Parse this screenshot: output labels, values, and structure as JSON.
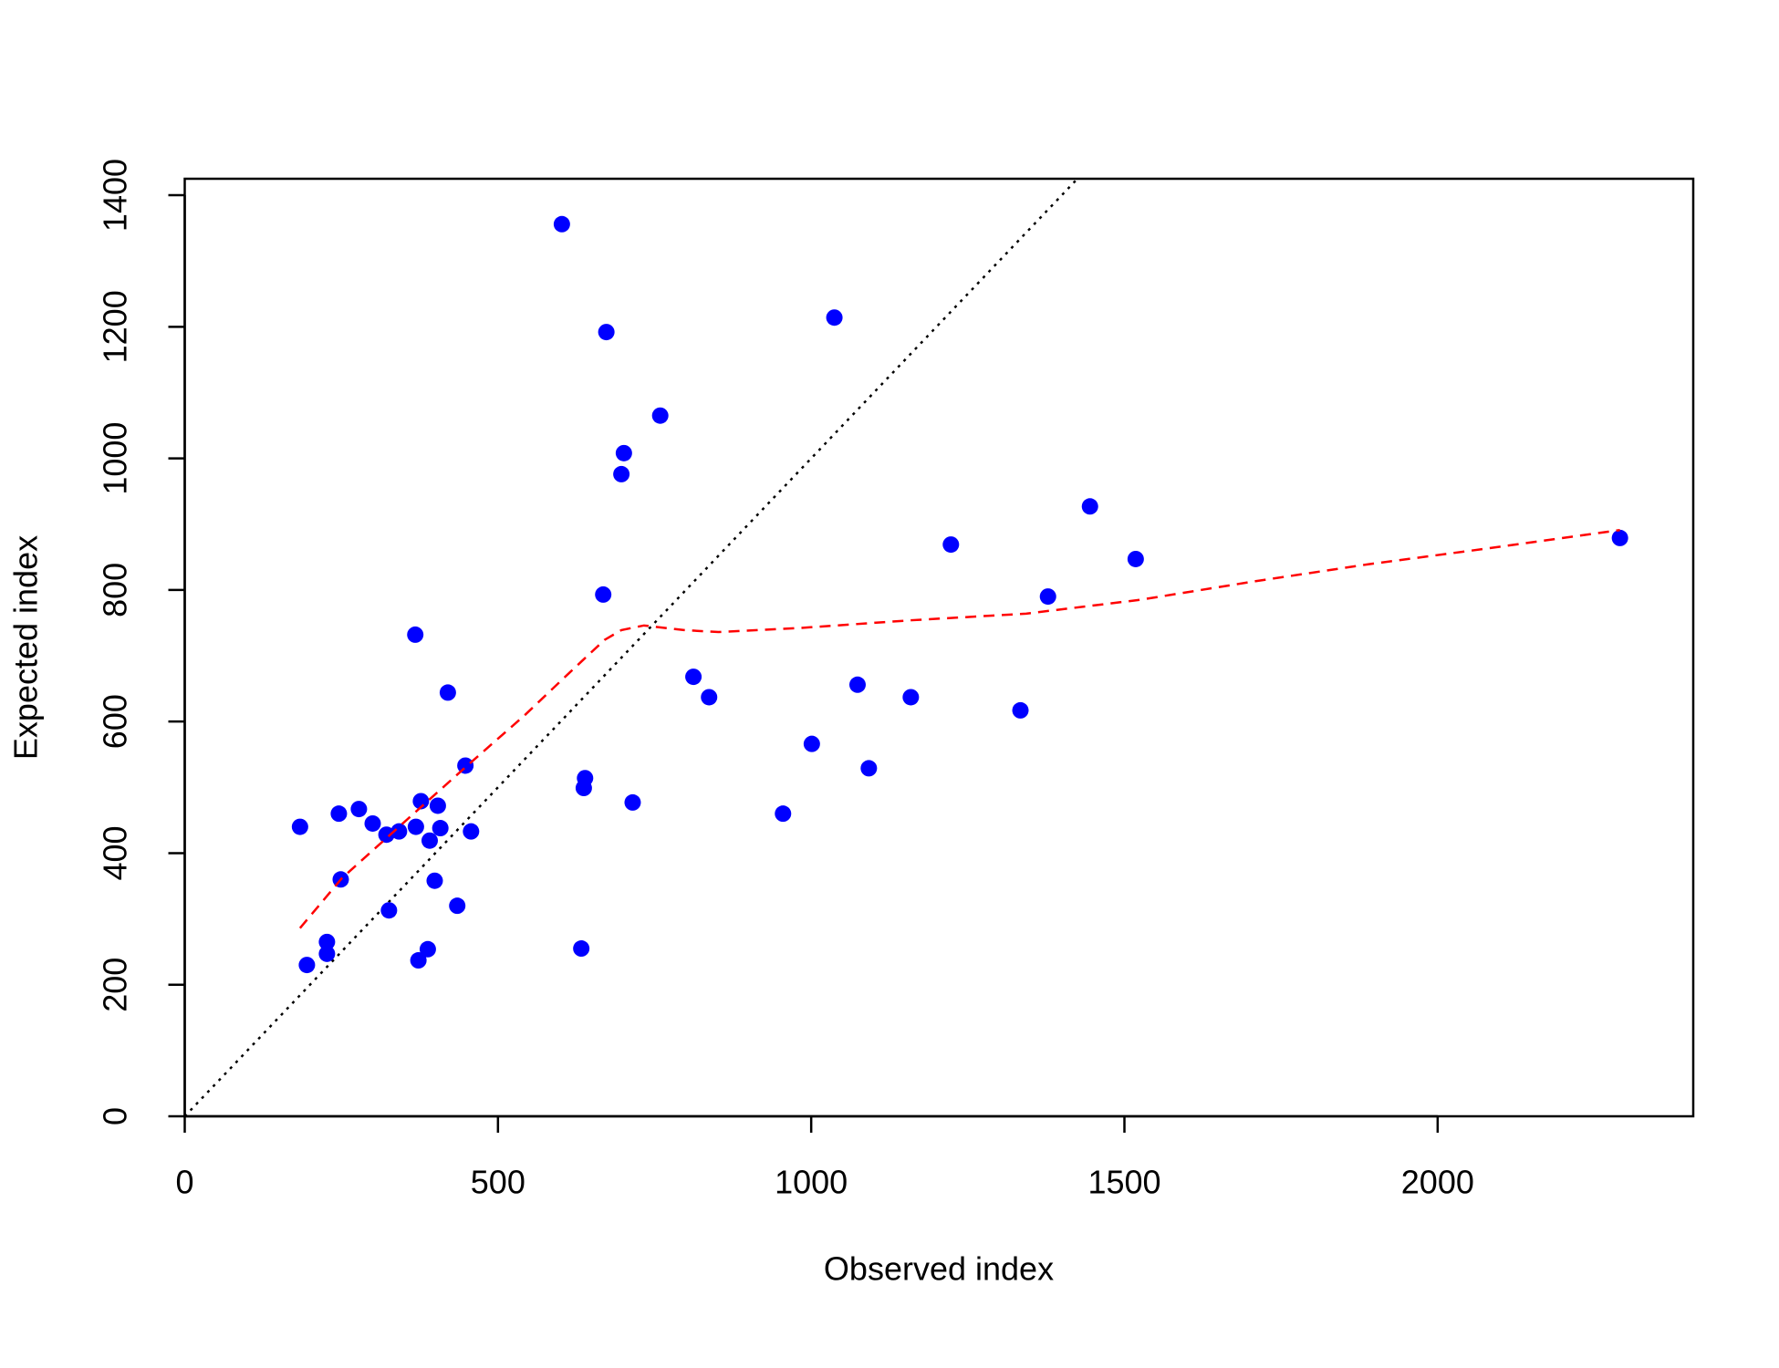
{
  "chart_data": {
    "type": "scatter",
    "x_label": "Observed index",
    "y_label": "Expected index",
    "xlim": [
      0,
      2408
    ],
    "ylim": [
      0,
      1425
    ],
    "xticks": [
      0,
      500,
      1000,
      1500,
      2000
    ],
    "yticks": [
      0,
      200,
      400,
      600,
      800,
      1000,
      1200,
      1400
    ],
    "reference_line": {
      "intercept": 0,
      "slope": 1,
      "color": "#000000"
    },
    "series": [
      {
        "type": "scatter",
        "color": "#0000ff",
        "x": [
          184,
          195,
          227,
          227,
          246,
          249,
          278,
          300,
          322,
          326,
          342,
          368,
          369,
          373,
          377,
          388,
          391,
          399,
          404,
          408,
          420,
          435,
          448,
          457,
          602,
          633,
          637,
          639,
          668,
          673,
          697,
          701,
          715,
          759,
          812,
          837,
          955,
          1001,
          1037,
          1074,
          1092,
          1159,
          1223,
          1334,
          1378,
          1445,
          1518,
          2291
        ],
        "values": [
          440,
          230,
          265,
          247,
          460,
          360,
          467,
          445,
          428,
          313,
          433,
          732,
          440,
          237,
          479,
          254,
          419,
          358,
          472,
          438,
          644,
          320,
          533,
          433,
          1356,
          255,
          499,
          514,
          793,
          1192,
          976,
          1008,
          477,
          1065,
          668,
          637,
          460,
          566,
          1214,
          656,
          529,
          637,
          869,
          617,
          790,
          927,
          847,
          879
        ]
      },
      {
        "type": "line",
        "color": "#ff0000",
        "x": [
          184,
          251,
          342,
          451,
          542,
          615,
          670,
          697,
          733,
          797,
          852,
          979,
          1161,
          1343,
          1525,
          1707,
          1889,
          2071,
          2291
        ],
        "values": [
          286,
          362,
          440,
          533,
          609,
          675,
          724,
          739,
          746,
          739,
          736,
          742,
          754,
          764,
          785,
          813,
          839,
          862,
          891
        ]
      }
    ]
  }
}
